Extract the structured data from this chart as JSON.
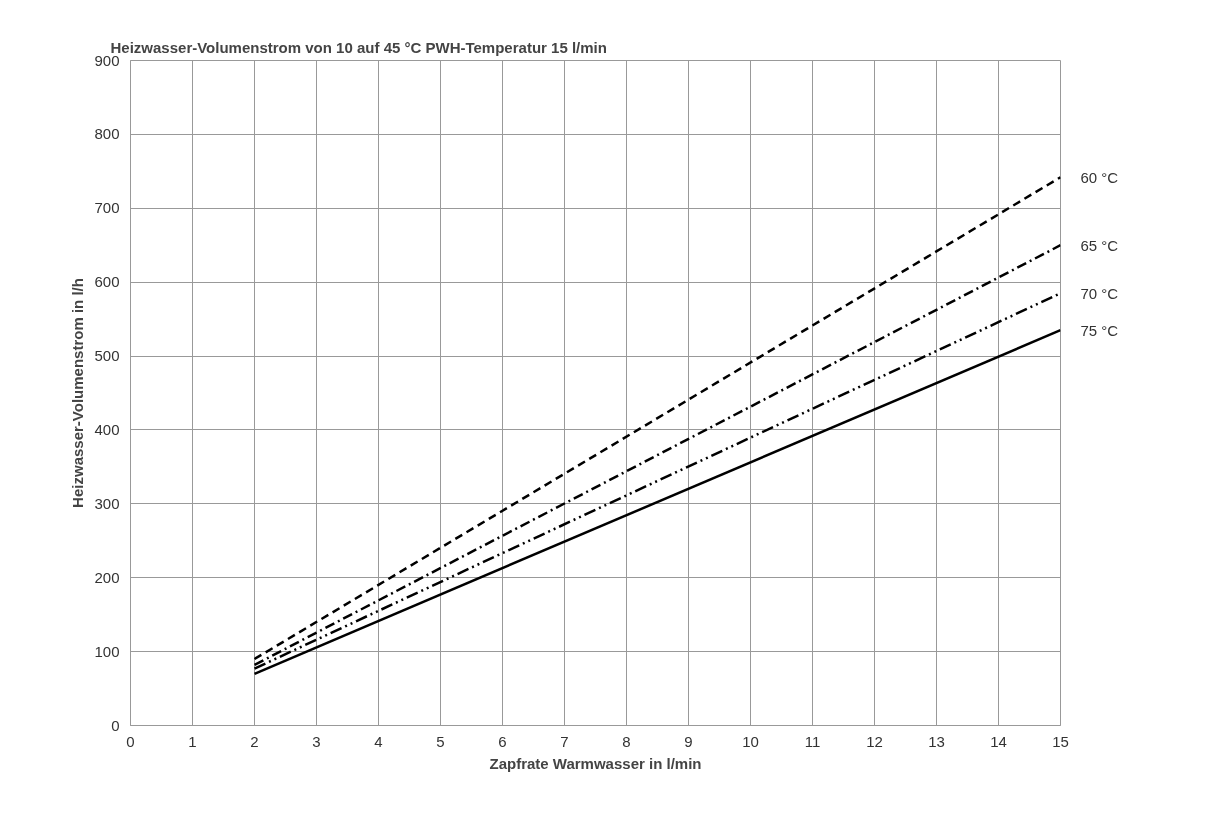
{
  "chart_data": {
    "type": "line",
    "title": "Heizwasser-Volumenstrom von 10 auf 45 °C PWH-Temperatur 15 l/min",
    "xlabel": "Zapfrate Warmwasser in l/min",
    "ylabel": "Heizwasser-Volumenstrom in l/h",
    "x": [
      2,
      15
    ],
    "series": [
      {
        "name": "60 °C",
        "color": "#000000",
        "line_style": "dashed",
        "values": [
          90,
          742
        ]
      },
      {
        "name": "65 °C",
        "color": "#000000",
        "line_style": "dashdot",
        "values": [
          82,
          650
        ]
      },
      {
        "name": "70 °C",
        "color": "#000000",
        "line_style": "dashdotdot",
        "values": [
          77,
          585
        ]
      },
      {
        "name": "75 °C",
        "color": "#000000",
        "line_style": "solid",
        "values": [
          70,
          535
        ]
      }
    ],
    "xlim": [
      0,
      15
    ],
    "xticks": [
      0,
      1,
      2,
      3,
      4,
      5,
      6,
      7,
      8,
      9,
      10,
      11,
      12,
      13,
      14,
      15
    ],
    "ylim": [
      0,
      900
    ],
    "yticks": [
      0,
      100,
      200,
      300,
      400,
      500,
      600,
      700,
      800,
      900
    ],
    "grid": true,
    "marker": "none"
  }
}
